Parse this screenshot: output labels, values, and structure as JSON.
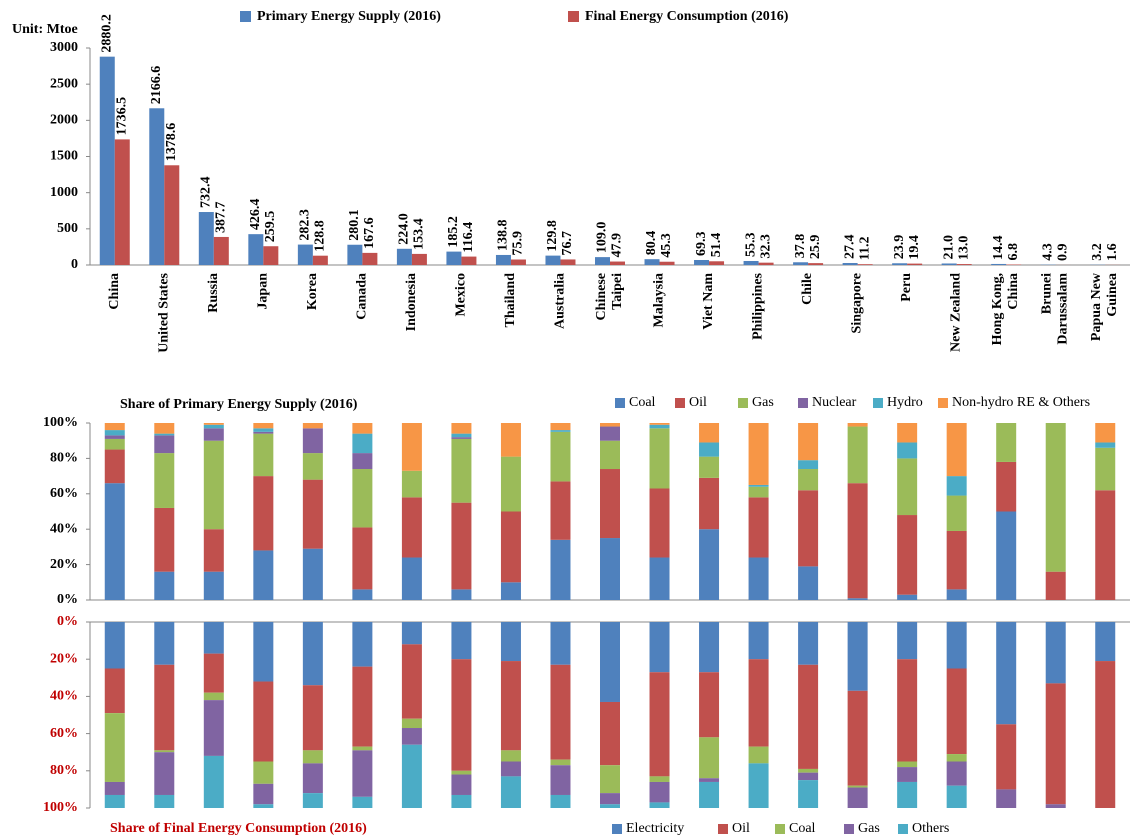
{
  "chart_data": [
    {
      "type": "bar",
      "unit_label": "Unit: Mtoe",
      "categories": [
        "China",
        "United States",
        "Russia",
        "Japan",
        "Korea",
        "Canada",
        "Indonesia",
        "Mexico",
        "Thailand",
        "Australia",
        "Chinese\nTaipei",
        "Malaysia",
        "Viet Nam",
        "Philippines",
        "Chile",
        "Singapore",
        "Peru",
        "New Zealand",
        "Hong Kong,\nChina",
        "Brunei\nDarussalam",
        "Papua New\nGuinea"
      ],
      "series": [
        {
          "name": "Primary Energy Supply (2016)",
          "color": "#4f81bd",
          "values": [
            2880.2,
            2166.6,
            732.4,
            426.4,
            282.3,
            280.1,
            224.0,
            185.2,
            138.8,
            129.8,
            109.0,
            80.4,
            69.3,
            55.3,
            37.8,
            27.4,
            23.9,
            21.0,
            14.4,
            4.3,
            3.2
          ],
          "value_labels": [
            "2880.2",
            "2166.6",
            "732.4",
            "426.4",
            "282.3",
            "280.1",
            "224.0",
            "185.2",
            "138.8",
            "129.8",
            "109.0",
            "80.4",
            "69.3",
            "55.3",
            "37.8",
            "27.4",
            "23.9",
            "21.0",
            "14.4",
            "4.3",
            "3.2"
          ]
        },
        {
          "name": "Final Energy Consumption (2016)",
          "color": "#c0504d",
          "values": [
            1736.5,
            1378.6,
            387.7,
            259.5,
            128.8,
            167.6,
            153.4,
            116.4,
            75.9,
            76.7,
            47.9,
            45.3,
            51.4,
            32.3,
            25.9,
            11.2,
            19.4,
            13.0,
            6.8,
            0.9,
            1.6
          ],
          "value_labels": [
            "1736.5",
            "1378.6",
            "387.7",
            "259.5",
            "128.8",
            "167.6",
            "153.4",
            "116.4",
            "75.9",
            "76.7",
            "47.9",
            "45.3",
            "51.4",
            "32.3",
            "25.9",
            "11.2",
            "19.4",
            "13.0",
            "6.8",
            "0.9",
            "1.6"
          ]
        }
      ],
      "ylim": [
        0,
        3000
      ],
      "yticks": [
        0,
        500,
        1000,
        1500,
        2000,
        2500,
        3000
      ]
    },
    {
      "type": "stacked_bar",
      "title": "Share of Primary Energy Supply (2016)",
      "y_reversed": false,
      "series": [
        {
          "name": "Coal",
          "color": "#4f81bd",
          "values": [
            66,
            16,
            16,
            28,
            29,
            6,
            24,
            6,
            10,
            34,
            35,
            24,
            40,
            24,
            19,
            1,
            3,
            6,
            50,
            0,
            0
          ]
        },
        {
          "name": "Oil",
          "color": "#c0504d",
          "values": [
            19,
            36,
            24,
            42,
            39,
            35,
            34,
            49,
            40,
            33,
            39,
            39,
            29,
            34,
            43,
            65,
            45,
            33,
            28,
            16,
            62
          ]
        },
        {
          "name": "Gas",
          "color": "#9bbb59",
          "values": [
            6,
            31,
            50,
            24,
            15,
            33,
            15,
            36,
            31,
            28,
            16,
            34,
            12,
            6,
            12,
            32,
            32,
            20,
            22,
            84,
            24
          ]
        },
        {
          "name": "Nuclear",
          "color": "#8064a2",
          "values": [
            2,
            10,
            7,
            1,
            14,
            9,
            0,
            1,
            0,
            0,
            8,
            0,
            0,
            0,
            0,
            0,
            0,
            0,
            0,
            0,
            0
          ]
        },
        {
          "name": "Hydro",
          "color": "#4bacc6",
          "values": [
            3,
            1,
            2,
            2,
            0,
            11,
            0,
            2,
            0,
            1,
            0,
            2,
            8,
            1,
            5,
            0,
            9,
            11,
            0,
            0,
            3
          ]
        },
        {
          "name": "Non-hydro RE & Others",
          "color": "#f79646",
          "values": [
            4,
            6,
            1,
            3,
            3,
            6,
            27,
            6,
            19,
            4,
            2,
            1,
            11,
            35,
            21,
            2,
            11,
            30,
            0,
            0,
            11
          ]
        }
      ],
      "ylim": [
        0,
        100
      ],
      "yticks": [
        {
          "value": 0,
          "label": "0%"
        },
        {
          "value": 20,
          "label": "20%"
        },
        {
          "value": 40,
          "label": "40%"
        },
        {
          "value": 60,
          "label": "60%"
        },
        {
          "value": 80,
          "label": "80%"
        },
        {
          "value": 100,
          "label": "100%"
        }
      ]
    },
    {
      "type": "stacked_bar",
      "title": "Share of Final Energy Consumption (2016)",
      "y_reversed": true,
      "series": [
        {
          "name": "Electricity",
          "color": "#4f81bd",
          "values": [
            25,
            23,
            17,
            32,
            34,
            24,
            12,
            20,
            21,
            23,
            43,
            27,
            27,
            20,
            23,
            37,
            20,
            25,
            55,
            33,
            21
          ]
        },
        {
          "name": "Oil",
          "color": "#c0504d",
          "values": [
            24,
            46,
            21,
            43,
            35,
            43,
            40,
            60,
            48,
            51,
            34,
            56,
            35,
            47,
            56,
            51,
            55,
            46,
            35,
            65,
            79
          ]
        },
        {
          "name": "Coal",
          "color": "#9bbb59",
          "values": [
            37,
            1,
            4,
            12,
            7,
            2,
            5,
            2,
            6,
            3,
            15,
            3,
            22,
            9,
            2,
            1,
            3,
            4,
            0,
            0,
            0
          ]
        },
        {
          "name": "Gas",
          "color": "#8064a2",
          "values": [
            7,
            23,
            30,
            11,
            16,
            25,
            9,
            11,
            8,
            16,
            6,
            11,
            2,
            0,
            4,
            11,
            8,
            13,
            10,
            2,
            0
          ]
        },
        {
          "name": "Others",
          "color": "#4bacc6",
          "values": [
            7,
            7,
            28,
            2,
            8,
            6,
            34,
            7,
            17,
            7,
            2,
            3,
            14,
            24,
            15,
            0,
            14,
            12,
            0,
            0,
            0
          ]
        }
      ],
      "ylim": [
        0,
        100
      ],
      "yticks": [
        {
          "value": 0,
          "label": "0%"
        },
        {
          "value": 20,
          "label": "20%"
        },
        {
          "value": 40,
          "label": "40%"
        },
        {
          "value": 60,
          "label": "60%"
        },
        {
          "value": 80,
          "label": "80%"
        },
        {
          "value": 100,
          "label": "100%"
        }
      ]
    }
  ]
}
